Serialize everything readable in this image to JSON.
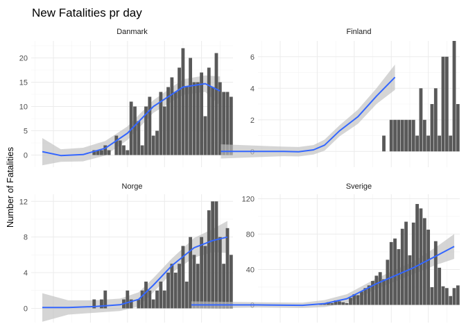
{
  "chart_data": {
    "type": "bar",
    "title": "New Fatalities pr day",
    "xlabel": "",
    "ylabel": "Number of Fatalities",
    "overlay": "smoothed trend line with confidence band",
    "line_color": "#3366FF",
    "bar_color": "#595959",
    "band_color": "#BEBEBE",
    "grid": true,
    "x_tick_labels_shown": false,
    "x_days": 38,
    "panels": [
      {
        "name": "Danmark",
        "ylim": [
          -2.5,
          23.5
        ],
        "yticks": [
          0,
          5,
          10,
          15,
          20
        ],
        "x_start": 1,
        "values": [
          1,
          1,
          1,
          2,
          1,
          0,
          4,
          3,
          2,
          1,
          11,
          10,
          7,
          2,
          10,
          12,
          4,
          5,
          13,
          10,
          14,
          16,
          13,
          18,
          22,
          14,
          20,
          15,
          15,
          17,
          8,
          18,
          14,
          21,
          15,
          13,
          13,
          12
        ],
        "trend": [
          [
            -13,
            0.7
          ],
          [
            -8,
            -0.1
          ],
          [
            -2,
            0.1
          ],
          [
            4,
            1.4
          ],
          [
            10,
            4.5
          ],
          [
            17,
            10
          ],
          [
            25,
            14
          ],
          [
            31,
            14.7
          ],
          [
            35,
            13.2
          ]
        ],
        "band": [
          2.8,
          1.3,
          1.4,
          1.5,
          1.4,
          1.3,
          1.6,
          1.7,
          3.0
        ]
      },
      {
        "name": "Finland",
        "ylim": [
          -1,
          7
        ],
        "yticks": [
          0,
          2,
          4,
          6
        ],
        "x_start": 1,
        "values": [
          1,
          0,
          2,
          2,
          2,
          2,
          2,
          2,
          2,
          1,
          4,
          2,
          1,
          3,
          4,
          1,
          6,
          6,
          1,
          7,
          3
        ],
        "trend": [
          [
            -26,
            0
          ],
          [
            -9,
            0
          ],
          [
            -5,
            -0.02
          ],
          [
            -1,
            0.1
          ],
          [
            2,
            0.4
          ],
          [
            6,
            1.3
          ],
          [
            11,
            2.2
          ],
          [
            16,
            3.5
          ],
          [
            21,
            4.7
          ]
        ],
        "band": [
          0.45,
          0.3,
          0.3,
          0.3,
          0.35,
          0.35,
          0.45,
          0.5,
          0.8
        ]
      },
      {
        "name": "Norge",
        "ylim": [
          -1.6,
          12.8
        ],
        "yticks": [
          0,
          4,
          8,
          12
        ],
        "x_start": 1,
        "values": [
          1,
          0,
          1,
          2,
          0,
          0,
          0,
          0,
          1,
          2,
          1,
          0,
          1,
          2,
          3,
          2,
          1,
          2,
          3,
          2,
          4,
          5,
          4,
          5,
          7,
          3,
          8,
          6,
          5,
          8,
          7,
          11,
          12,
          12,
          8,
          5,
          9,
          6
        ],
        "trend": [
          [
            -13,
            0.1
          ],
          [
            -6,
            0.1
          ],
          [
            1,
            0.2
          ],
          [
            8,
            0.4
          ],
          [
            13,
            1
          ],
          [
            17,
            2.6
          ],
          [
            22,
            4.8
          ],
          [
            28,
            6.8
          ],
          [
            33,
            7.6
          ],
          [
            37,
            8
          ]
        ],
        "band": [
          1.6,
          0.8,
          0.7,
          0.7,
          0.8,
          0.8,
          0.8,
          1.1,
          1.3,
          1.8
        ]
      },
      {
        "name": "Sverige",
        "ylim": [
          -20,
          125
        ],
        "yticks": [
          0,
          40,
          80,
          120
        ],
        "x_start": 1,
        "values": [
          1,
          1,
          3,
          2,
          5,
          4,
          3,
          2,
          8,
          12,
          11,
          15,
          19,
          22,
          27,
          33,
          37,
          29,
          51,
          71,
          75,
          63,
          86,
          94,
          56,
          93,
          114,
          109,
          98,
          85,
          20,
          72,
          42,
          21,
          19,
          10,
          19,
          22
        ],
        "trend": [
          [
            -34,
            0
          ],
          [
            -16,
            0
          ],
          [
            -4,
            -0.5
          ],
          [
            2,
            1.5
          ],
          [
            8,
            7
          ],
          [
            16,
            24
          ],
          [
            26,
            42
          ],
          [
            32,
            55
          ],
          [
            37,
            66
          ]
        ],
        "band": [
          4,
          3,
          3,
          4,
          5,
          6,
          7,
          10,
          14
        ]
      }
    ]
  }
}
